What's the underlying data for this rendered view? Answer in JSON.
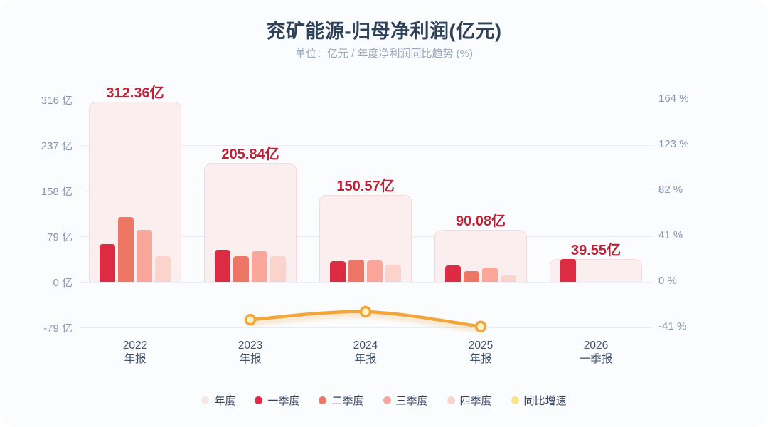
{
  "header": {
    "title": "兖矿能源-归母净利润(亿元)",
    "subtitle": "单位：亿元 / 年度净利润同比趋势 (%)"
  },
  "colors": {
    "card_bg": "#FBFCFE",
    "title_text": "#2F4158",
    "subtitle_text": "#9AA8BE",
    "grid": "#EAEEF4",
    "axis_text": "#8796AC",
    "xlabel_text": "#42526B",
    "value_label_red": "#BD2135",
    "annual_fill": "#FBEEEF",
    "annual_border": "#F4DADB",
    "q1": "#DC2B42",
    "q2": "#ED7665",
    "q3": "#F9A79A",
    "q4": "#FBD3CD",
    "line": "#F1A63C",
    "marker_fill": "#FDF3C0",
    "legend_annual_dot": "#F9E7E7",
    "legend_yoy_dot": "#F8E482"
  },
  "chart_data": {
    "type": "bar",
    "combo": "grouped quarterly bars + annual background bars + yoy growth line on secondary axis",
    "title": "兖矿能源-归母净利润(亿元)",
    "subtitle": "单位：亿元 / 年度净利润同比趋势 (%)",
    "categories": [
      [
        "2022",
        "年报"
      ],
      [
        "2023",
        "年报"
      ],
      [
        "2024",
        "年报"
      ],
      [
        "2025",
        "年报"
      ],
      [
        "2026",
        "一季报"
      ]
    ],
    "annual": {
      "name": "年度",
      "values": [
        312.36,
        205.84,
        150.57,
        90.08,
        39.55
      ],
      "labels": [
        "312.36亿",
        "205.84亿",
        "150.57亿",
        "90.08亿",
        "39.55亿"
      ]
    },
    "quarters": [
      {
        "name": "一季度",
        "values": [
          66,
          56,
          36,
          28.5,
          39.55
        ]
      },
      {
        "name": "二季度",
        "values": [
          112,
          44,
          38.5,
          18.5,
          null
        ]
      },
      {
        "name": "三季度",
        "values": [
          90,
          53,
          37.5,
          24.5,
          null
        ]
      },
      {
        "name": "四季度",
        "values": [
          44,
          44,
          29.5,
          11,
          null
        ]
      }
    ],
    "yoy_line": {
      "name": "同比增速",
      "unit": "%",
      "values": [
        null,
        -34.1,
        -26.9,
        -40.2,
        null
      ]
    },
    "left_axis": {
      "unit": "亿",
      "labels": [
        "316 亿",
        "237 亿",
        "158 亿",
        "79 亿",
        "0 亿",
        "-79 亿"
      ],
      "values": [
        316,
        237,
        158,
        79,
        0,
        -79
      ],
      "range": [
        -79,
        316
      ]
    },
    "right_axis": {
      "unit": "%",
      "labels": [
        "164 %",
        "123 %",
        "82 %",
        "41 %",
        "0 %",
        "-41 %"
      ],
      "values": [
        164,
        123,
        82,
        41,
        0,
        -41
      ],
      "range": [
        -41,
        164
      ]
    },
    "grid": "horizontal only",
    "legend_position": "bottom center",
    "legend": [
      {
        "label": "年度",
        "color": "#F9E7E7"
      },
      {
        "label": "一季度",
        "color": "#DC2B42"
      },
      {
        "label": "二季度",
        "color": "#ED7665"
      },
      {
        "label": "三季度",
        "color": "#F9A79A"
      },
      {
        "label": "四季度",
        "color": "#FBD3CD"
      },
      {
        "label": "同比增速",
        "color": "#F8E482"
      }
    ]
  }
}
